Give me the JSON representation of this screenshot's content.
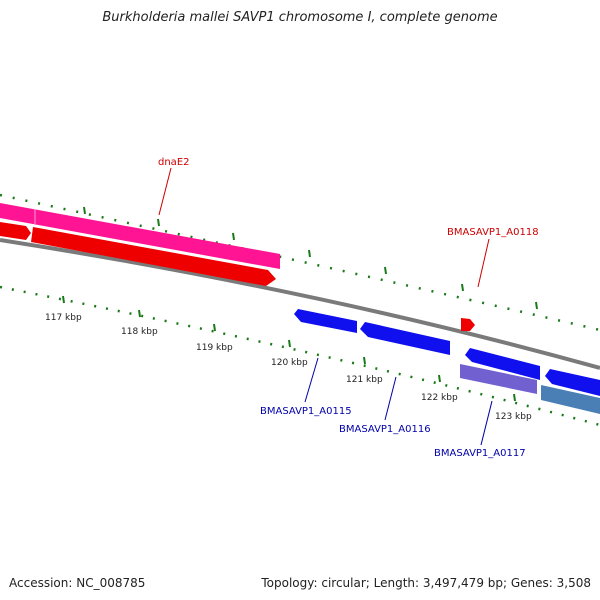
{
  "title": "Burkholderia mallei SAVP1 chromosome I, complete genome",
  "footer": {
    "accession": "Accession: NC_008785",
    "summary": "Topology: circular; Length: 3,497,479 bp; Genes: 3,508"
  },
  "ticks": [
    "117 kbp",
    "118 kbp",
    "119 kbp",
    "120 kbp",
    "121 kbp",
    "122 kbp",
    "123 kbp"
  ],
  "gene_labels": {
    "dnaE2": "dnaE2",
    "a0118": "BMASAVP1_A0118",
    "a0115": "BMASAVP1_A0115",
    "a0116": "BMASAVP1_A0116",
    "a0117": "BMASAVP1_A0117"
  },
  "colors": {
    "red_label": "#cc0000",
    "blue_label": "#0000aa",
    "backbone": "#808080",
    "gc_skew": "#1a7a1a"
  }
}
